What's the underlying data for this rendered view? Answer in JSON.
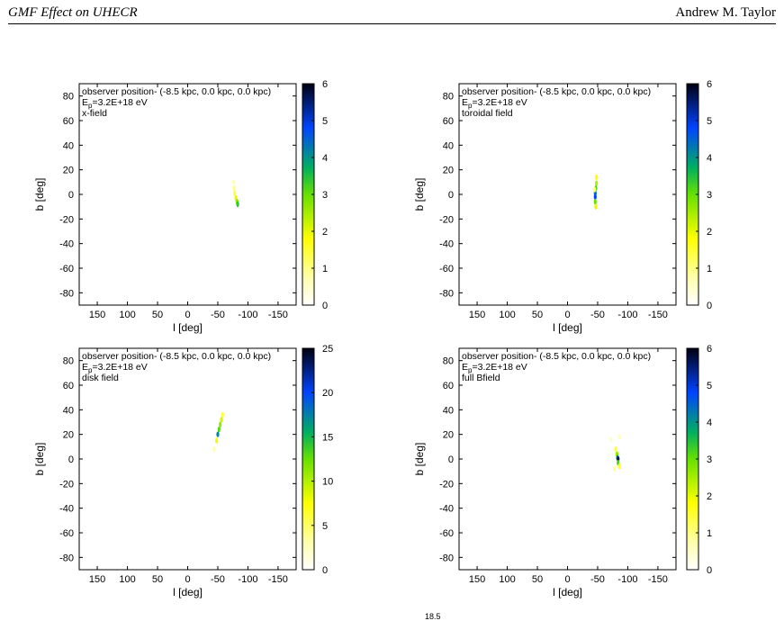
{
  "header": {
    "left_title": "GMF Effect on UHECR",
    "author": "Andrew M. Taylor"
  },
  "footer_fragment": "18.5",
  "chart_data": [
    {
      "type": "heatmap",
      "annotation": {
        "observer": "observer position- (-8.5 kpc, 0.0 kpc, 0.0 kpc)",
        "energy_prefix": "E",
        "energy_sub": "p",
        "energy_value": "=3.2E+18 eV",
        "field": "x-field"
      },
      "xlabel": "l [deg]",
      "ylabel": "b [deg]",
      "xlim": [
        180,
        -180
      ],
      "ylim": [
        -90,
        90
      ],
      "x_ticks": [
        "150",
        "100",
        "50",
        "0",
        "-50",
        "-100",
        "-150"
      ],
      "y_ticks": [
        "80",
        "60",
        "40",
        "20",
        "0",
        "-20",
        "-40",
        "-60",
        "-80"
      ],
      "colorbar": {
        "min": 0,
        "max": 6,
        "ticks": [
          "0",
          "1",
          "2",
          "3",
          "4",
          "5",
          "6"
        ]
      },
      "hotspots": [
        {
          "l": -76,
          "b": 10,
          "value": 0.6
        },
        {
          "l": -77,
          "b": 5,
          "value": 1.0
        },
        {
          "l": -78,
          "b": 1,
          "value": 1.4
        },
        {
          "l": -80,
          "b": -3,
          "value": 2.0
        },
        {
          "l": -82,
          "b": -6,
          "value": 2.8
        },
        {
          "l": -83,
          "b": -8,
          "value": 3.4
        }
      ]
    },
    {
      "type": "heatmap",
      "annotation": {
        "observer": "observer position- (-8.5 kpc, 0.0 kpc, 0.0 kpc)",
        "energy_prefix": "E",
        "energy_sub": "p",
        "energy_value": "=3.2E+18 eV",
        "field": "toroidal field"
      },
      "xlabel": "l [deg]",
      "ylabel": "b [deg]",
      "xlim": [
        180,
        -180
      ],
      "ylim": [
        -90,
        90
      ],
      "x_ticks": [
        "150",
        "100",
        "50",
        "0",
        "-50",
        "-100",
        "-150"
      ],
      "y_ticks": [
        "80",
        "60",
        "40",
        "20",
        "0",
        "-20",
        "-40",
        "-60",
        "-80"
      ],
      "colorbar": {
        "min": 0,
        "max": 6,
        "ticks": [
          "0",
          "1",
          "2",
          "3",
          "4",
          "5",
          "6"
        ]
      },
      "hotspots": [
        {
          "l": -48,
          "b": 14,
          "value": 1.8
        },
        {
          "l": -48,
          "b": 9,
          "value": 2.4
        },
        {
          "l": -47,
          "b": 5,
          "value": 3.2
        },
        {
          "l": -46,
          "b": 1,
          "value": 4.4
        },
        {
          "l": -46,
          "b": -2,
          "value": 4.8
        },
        {
          "l": -46,
          "b": -6,
          "value": 3.0
        },
        {
          "l": -47,
          "b": -10,
          "value": 2.0
        },
        {
          "l": -45,
          "b": 4,
          "value": 1.2
        }
      ]
    },
    {
      "type": "heatmap",
      "annotation": {
        "observer": "observer position- (-8.5 kpc, 0.0 kpc, 0.0 kpc)",
        "energy_prefix": "E",
        "energy_sub": "p",
        "energy_value": "=3.2E+18 eV",
        "field": "disk field"
      },
      "xlabel": "l [deg]",
      "ylabel": "b [deg]",
      "xlim": [
        180,
        -180
      ],
      "ylim": [
        -90,
        90
      ],
      "x_ticks": [
        "150",
        "100",
        "50",
        "0",
        "-50",
        "-100",
        "-150"
      ],
      "y_ticks": [
        "80",
        "60",
        "40",
        "20",
        "0",
        "-20",
        "-40",
        "-60",
        "-80"
      ],
      "colorbar": {
        "min": 0,
        "max": 25,
        "ticks": [
          "0",
          "5",
          "10",
          "15",
          "20",
          "25"
        ]
      },
      "hotspots": [
        {
          "l": -58,
          "b": 36,
          "value": 6
        },
        {
          "l": -56,
          "b": 32,
          "value": 9
        },
        {
          "l": -54,
          "b": 28,
          "value": 11
        },
        {
          "l": -52,
          "b": 24,
          "value": 13
        },
        {
          "l": -50,
          "b": 20,
          "value": 17
        },
        {
          "l": -48,
          "b": 15,
          "value": 8
        },
        {
          "l": -44,
          "b": 8,
          "value": 3
        }
      ]
    },
    {
      "type": "heatmap",
      "annotation": {
        "observer": "observer position- (-8.5 kpc, 0.0 kpc, 0.0 kpc)",
        "energy_prefix": "E",
        "energy_sub": "p",
        "energy_value": "=3.2E+18 eV",
        "field": "full Bfield"
      },
      "xlabel": "l [deg]",
      "ylabel": "b [deg]",
      "xlim": [
        180,
        -180
      ],
      "ylim": [
        -90,
        90
      ],
      "x_ticks": [
        "150",
        "100",
        "50",
        "0",
        "-50",
        "-100",
        "-150"
      ],
      "y_ticks": [
        "80",
        "60",
        "40",
        "20",
        "0",
        "-20",
        "-40",
        "-60",
        "-80"
      ],
      "colorbar": {
        "min": 0,
        "max": 6,
        "ticks": [
          "0",
          "1",
          "2",
          "3",
          "4",
          "5",
          "6"
        ]
      },
      "hotspots": [
        {
          "l": -72,
          "b": 16,
          "value": 0.5
        },
        {
          "l": -86,
          "b": 18,
          "value": 0.6
        },
        {
          "l": -80,
          "b": 8,
          "value": 1.4
        },
        {
          "l": -82,
          "b": 4,
          "value": 2.6
        },
        {
          "l": -83,
          "b": 1,
          "value": 4.0
        },
        {
          "l": -84,
          "b": 0,
          "value": 5.6
        },
        {
          "l": -84,
          "b": -3,
          "value": 3.2
        },
        {
          "l": -86,
          "b": -6,
          "value": 1.6
        },
        {
          "l": -78,
          "b": -8,
          "value": 0.8
        }
      ]
    }
  ]
}
